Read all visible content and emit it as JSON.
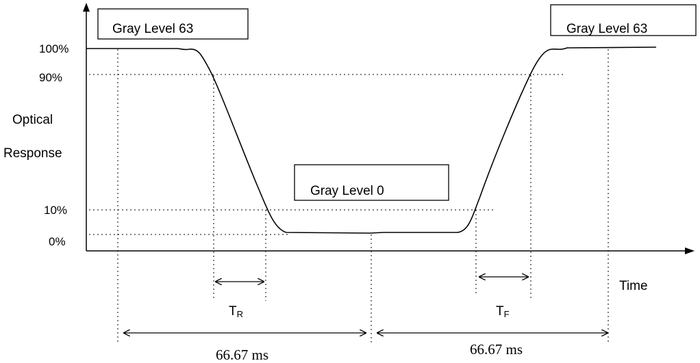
{
  "y_axis": {
    "title_line1": "Optical",
    "title_line2": "Response",
    "ticks": [
      "100%",
      "90%",
      "10%",
      "0%"
    ]
  },
  "x_axis": {
    "label": "Time"
  },
  "boxes": {
    "left": "Gray Level 63",
    "middle": "Gray Level 0",
    "right": "Gray Level 63"
  },
  "timing": {
    "rise": {
      "main": "T",
      "sub": "R"
    },
    "fall": {
      "main": "T",
      "sub": "F"
    },
    "period_left": "66.67 ms",
    "period_right": "66.67 ms"
  }
}
